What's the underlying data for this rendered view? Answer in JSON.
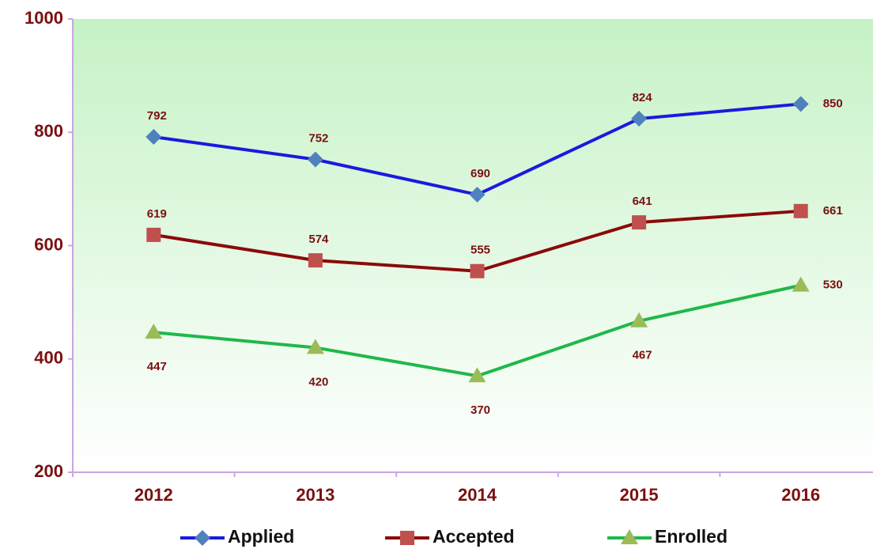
{
  "chart_data": {
    "type": "line",
    "categories": [
      "2012",
      "2013",
      "2014",
      "2015",
      "2016"
    ],
    "series": [
      {
        "name": "Applied",
        "color": "#1a1adf",
        "marker_color": "#4f81bd",
        "marker": "diamond",
        "values": [
          792,
          752,
          690,
          824,
          850
        ]
      },
      {
        "name": "Accepted",
        "color": "#8b0a0a",
        "marker_color": "#c0504d",
        "marker": "square",
        "values": [
          619,
          574,
          555,
          641,
          661
        ]
      },
      {
        "name": "Enrolled",
        "color": "#1fb84a",
        "marker_color": "#9bbb59",
        "marker": "triangle",
        "values": [
          447,
          420,
          370,
          467,
          530
        ]
      }
    ],
    "ylim": [
      200,
      1000
    ],
    "yticks": [
      200,
      400,
      600,
      800,
      1000
    ],
    "grid": false,
    "legend": "bottom"
  }
}
